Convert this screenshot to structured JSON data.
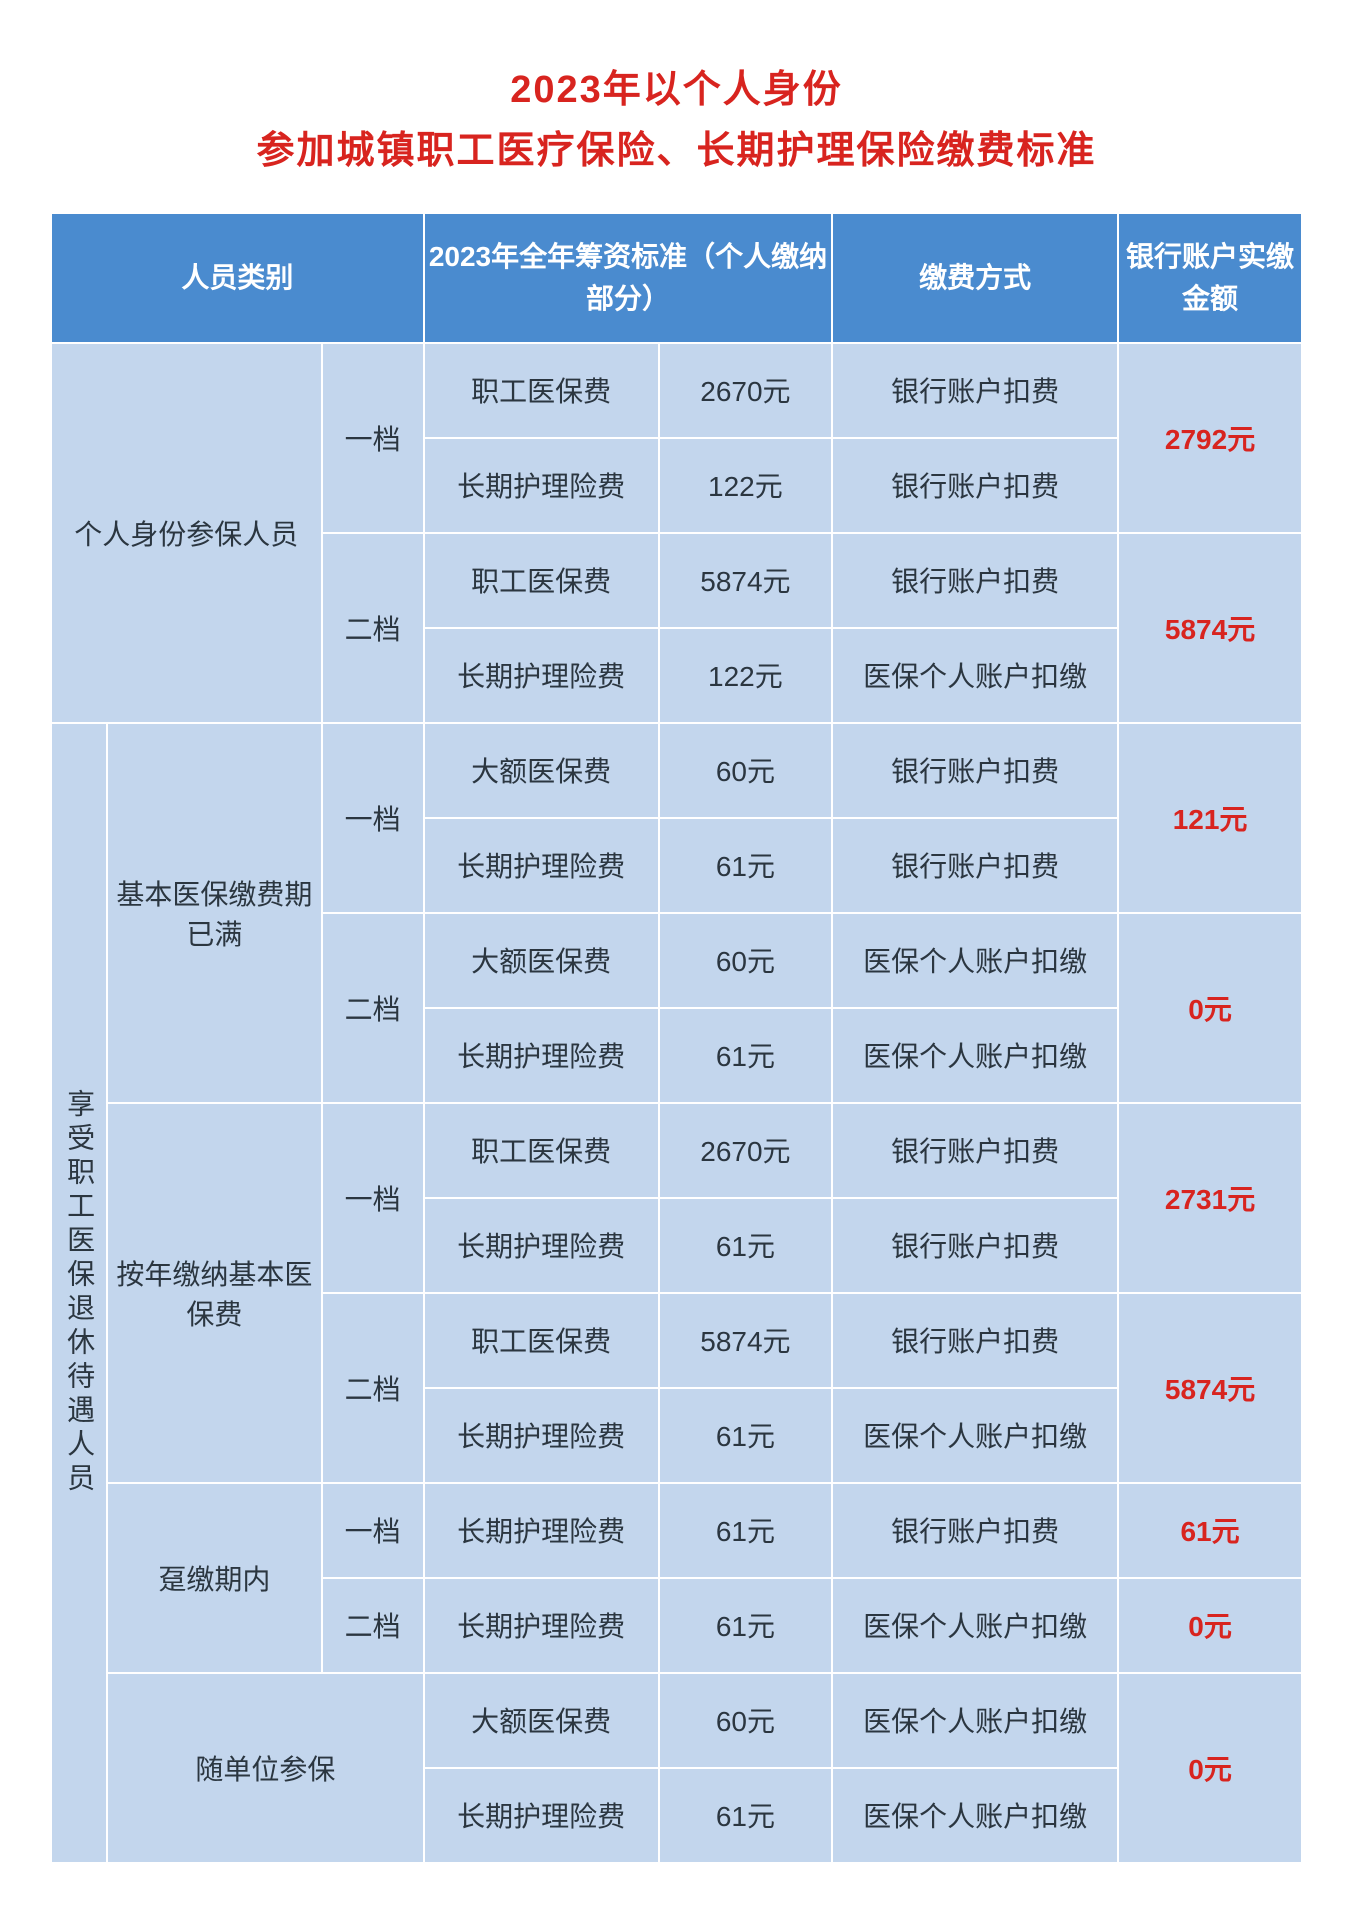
{
  "title_line1": "2023年以个人身份",
  "title_line2": "参加城镇职工医疗保险、长期护理保险缴费标准",
  "headers": {
    "category": "人员类别",
    "standard": "2023年全年筹资标准（个人缴纳部分）",
    "method": "缴费方式",
    "total": "银行账户实缴金额"
  },
  "group1": {
    "label": "个人身份参保人员",
    "tier1": {
      "label": "一档",
      "r1_item": "职工医保费",
      "r1_amt": "2670元",
      "r1_method": "银行账户扣费",
      "r2_item": "长期护理险费",
      "r2_amt": "122元",
      "r2_method": "银行账户扣费",
      "total": "2792元"
    },
    "tier2": {
      "label": "二档",
      "r1_item": "职工医保费",
      "r1_amt": "5874元",
      "r1_method": "银行账户扣费",
      "r2_item": "长期护理险费",
      "r2_amt": "122元",
      "r2_method": "医保个人账户扣缴",
      "total": "5874元"
    }
  },
  "group2": {
    "label": "享受职工医保退休待遇人员",
    "sub1": {
      "label": "基本医保缴费期已满",
      "tier1": {
        "label": "一档",
        "r1_item": "大额医保费",
        "r1_amt": "60元",
        "r1_method": "银行账户扣费",
        "r2_item": "长期护理险费",
        "r2_amt": "61元",
        "r2_method": "银行账户扣费",
        "total": "121元"
      },
      "tier2": {
        "label": "二档",
        "r1_item": "大额医保费",
        "r1_amt": "60元",
        "r1_method": "医保个人账户扣缴",
        "r2_item": "长期护理险费",
        "r2_amt": "61元",
        "r2_method": "医保个人账户扣缴",
        "total": "0元"
      }
    },
    "sub2": {
      "label": "按年缴纳基本医保费",
      "tier1": {
        "label": "一档",
        "r1_item": "职工医保费",
        "r1_amt": "2670元",
        "r1_method": "银行账户扣费",
        "r2_item": "长期护理险费",
        "r2_amt": "61元",
        "r2_method": "银行账户扣费",
        "total": "2731元"
      },
      "tier2": {
        "label": "二档",
        "r1_item": "职工医保费",
        "r1_amt": "5874元",
        "r1_method": "银行账户扣费",
        "r2_item": "长期护理险费",
        "r2_amt": "61元",
        "r2_method": "医保个人账户扣缴",
        "total": "5874元"
      }
    },
    "sub3": {
      "label": "趸缴期内",
      "tier1": {
        "label": "一档",
        "r1_item": "长期护理险费",
        "r1_amt": "61元",
        "r1_method": "银行账户扣费",
        "total": "61元"
      },
      "tier2": {
        "label": "二档",
        "r1_item": "长期护理险费",
        "r1_amt": "61元",
        "r1_method": "医保个人账户扣缴",
        "total": "0元"
      }
    },
    "sub4": {
      "label": "随单位参保",
      "r1_item": "大额医保费",
      "r1_amt": "60元",
      "r1_method": "医保个人账户扣缴",
      "r2_item": "长期护理险费",
      "r2_amt": "61元",
      "r2_method": "医保个人账户扣缴",
      "total": "0元"
    }
  }
}
